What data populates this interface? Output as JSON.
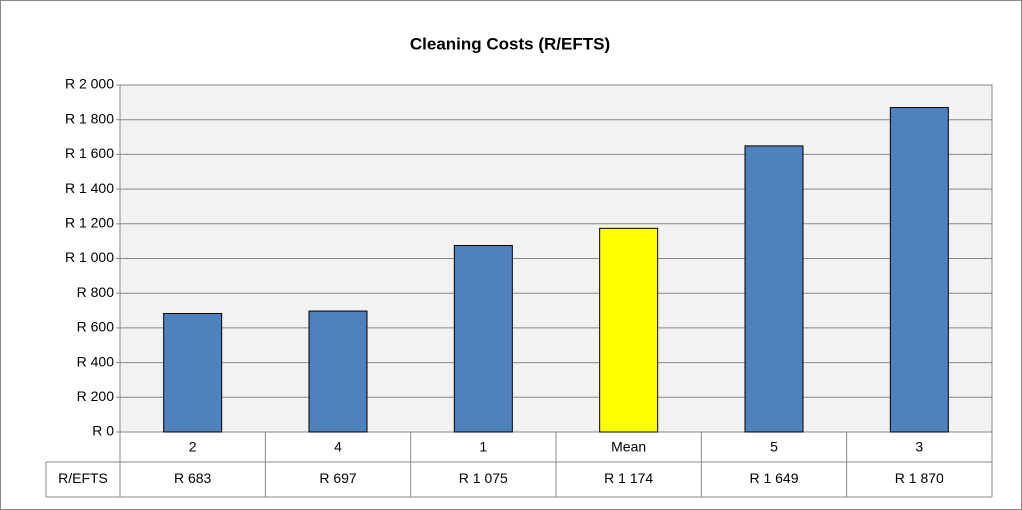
{
  "chart_data": {
    "type": "bar",
    "title": "Cleaning Costs (R/EFTS)",
    "categories": [
      "2",
      "4",
      "1",
      "Mean",
      "5",
      "3"
    ],
    "series": [
      {
        "name": "R/EFTS",
        "colors": [
          "#4f81bd",
          "#4f81bd",
          "#4f81bd",
          "#ffff00",
          "#4f81bd",
          "#4f81bd"
        ],
        "values": [
          683,
          697,
          1075,
          1174,
          1649,
          1870
        ],
        "value_labels": [
          "R 683",
          "R 697",
          "R 1 075",
          "R 1 174",
          "R 1 649",
          "R 1 870"
        ]
      }
    ],
    "ylim": [
      0,
      2000
    ],
    "yticks": [
      {
        "value": 0,
        "label": "R 0"
      },
      {
        "value": 200,
        "label": "R 200"
      },
      {
        "value": 400,
        "label": "R 400"
      },
      {
        "value": 600,
        "label": "R 600"
      },
      {
        "value": 800,
        "label": "R 800"
      },
      {
        "value": 1000,
        "label": "R 1 000"
      },
      {
        "value": 1200,
        "label": "R 1 200"
      },
      {
        "value": 1400,
        "label": "R 1 400"
      },
      {
        "value": 1600,
        "label": "R 1 600"
      },
      {
        "value": 1800,
        "label": "R 1 800"
      },
      {
        "value": 2000,
        "label": "R 2 000"
      }
    ],
    "grid": true
  }
}
